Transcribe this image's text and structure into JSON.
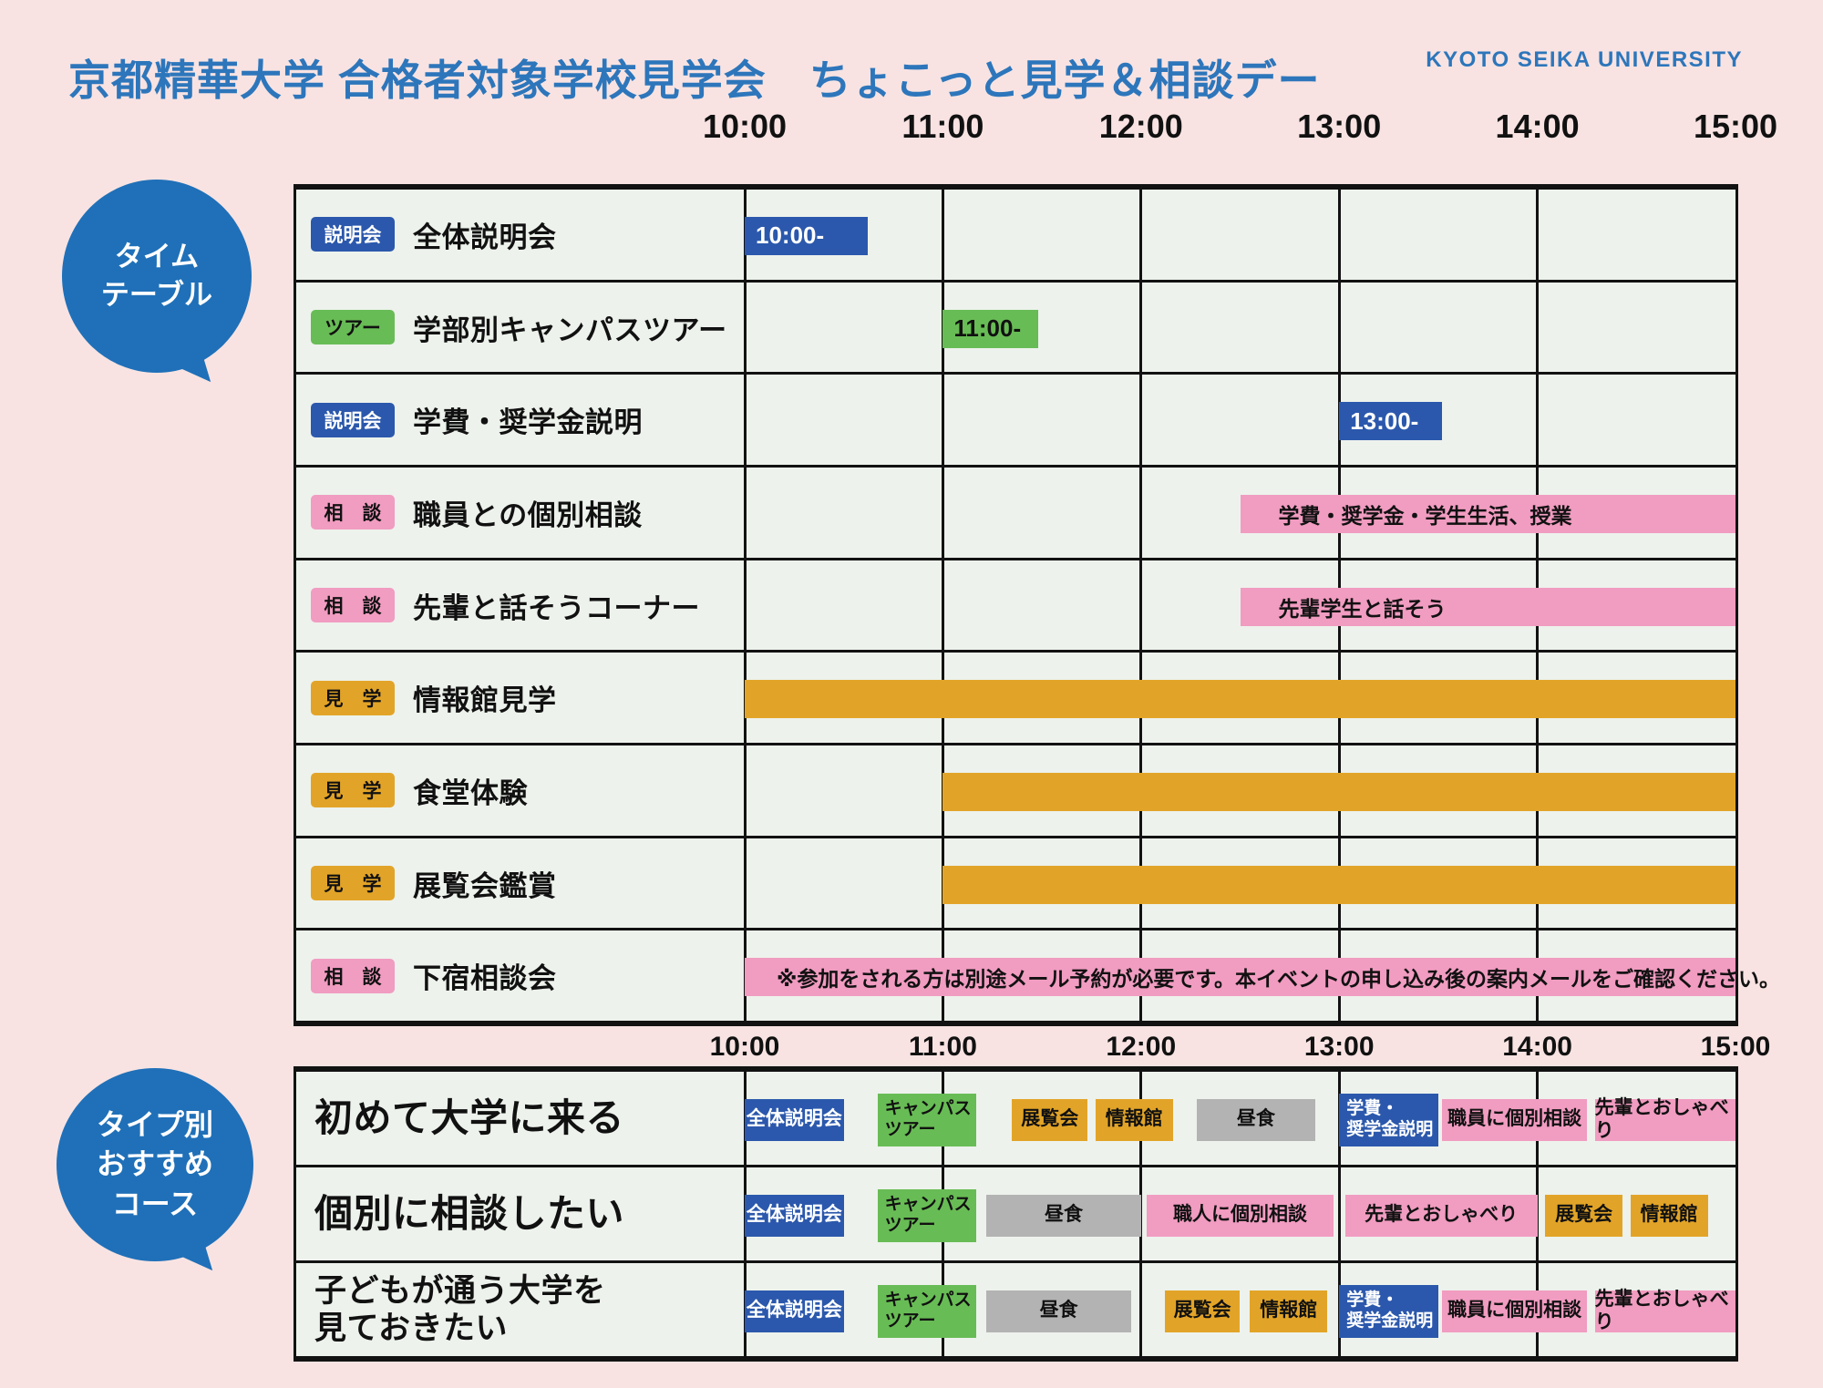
{
  "title": "京都精華大学 合格者対象学校見学会　ちょこっと見学＆相談デー",
  "brand": "KYOTO SEIKA UNIVERSITY",
  "bubbles": {
    "timetable": "タイム\nテーブル",
    "courses": "タイプ別\nおすすめ\nコース"
  },
  "palette": {
    "page_bg": "#f8e3e2",
    "cell_bg": "#edf2ec",
    "line": "#121212",
    "title_blue": "#2d76bb",
    "bubble_blue": "#1f70b8",
    "blue": "#2b58ac",
    "green": "#68bc55",
    "orange": "#e2a428",
    "pink": "#f19cc1",
    "gray": "#b3b3b3"
  },
  "time_axis": {
    "start": 10,
    "end": 15,
    "ticks": [
      "10:00",
      "11:00",
      "12:00",
      "13:00",
      "14:00",
      "15:00"
    ]
  },
  "chart_data": [
    {
      "type": "gantt",
      "name": "timetable",
      "rows": [
        {
          "badge": "説明会",
          "badge_color": "blue",
          "label": "全体説明会",
          "bars": [
            {
              "start": 10.0,
              "end": 10.62,
              "color": "blue",
              "text": "10:00-"
            }
          ]
        },
        {
          "badge": "ツアー",
          "badge_color": "green",
          "label": "学部別キャンパスツアー",
          "bars": [
            {
              "start": 11.0,
              "end": 11.48,
              "color": "green",
              "text": "11:00-"
            }
          ]
        },
        {
          "badge": "説明会",
          "badge_color": "blue",
          "label": "学費・奨学金説明",
          "bars": [
            {
              "start": 13.0,
              "end": 13.52,
              "color": "blue",
              "text": "13:00-"
            }
          ]
        },
        {
          "badge": "相　談",
          "badge_color": "pink",
          "label": "職員との個別相談",
          "bars": [
            {
              "start": 12.5,
              "end": 15.0,
              "color": "pink",
              "text": "学費・奨学金・学生生活、授業",
              "pad": 42
            }
          ]
        },
        {
          "badge": "相　談",
          "badge_color": "pink",
          "label": "先輩と話そうコーナー",
          "bars": [
            {
              "start": 12.5,
              "end": 15.0,
              "color": "pink",
              "text": "先輩学生と話そう",
              "pad": 42
            }
          ]
        },
        {
          "badge": "見　学",
          "badge_color": "orange",
          "label": "情報館見学",
          "bars": [
            {
              "start": 10.0,
              "end": 15.0,
              "color": "orange"
            }
          ]
        },
        {
          "badge": "見　学",
          "badge_color": "orange",
          "label": "食堂体験",
          "bars": [
            {
              "start": 11.0,
              "end": 15.0,
              "color": "orange"
            }
          ]
        },
        {
          "badge": "見　学",
          "badge_color": "orange",
          "label": "展覧会鑑賞",
          "bars": [
            {
              "start": 11.0,
              "end": 15.0,
              "color": "orange"
            }
          ]
        },
        {
          "badge": "相　談",
          "badge_color": "pink",
          "label": "下宿相談会",
          "bars": [
            {
              "start": 10.0,
              "end": 15.0,
              "color": "pink",
              "text": "※参加をされる方は別途メール予約が必要です。本イベントの申し込み後の案内メールをご確認ください。",
              "pad": 35
            }
          ]
        }
      ]
    },
    {
      "type": "gantt",
      "name": "recommended-courses",
      "rows": [
        {
          "label": "初めて大学に来る",
          "bars": [
            {
              "start": 10.0,
              "end": 10.5,
              "color": "blue",
              "text": "全体説明会"
            },
            {
              "start": 10.67,
              "end": 11.17,
              "color": "green",
              "text": "キャンパス\nツアー"
            },
            {
              "start": 11.35,
              "end": 11.73,
              "color": "orange",
              "text": "展覧会"
            },
            {
              "start": 11.77,
              "end": 12.16,
              "color": "orange",
              "text": "情報館"
            },
            {
              "start": 12.28,
              "end": 12.88,
              "color": "gray",
              "text": "昼食"
            },
            {
              "start": 13.0,
              "end": 13.5,
              "color": "blue",
              "text": "学費・\n奨学金説明"
            },
            {
              "start": 13.52,
              "end": 14.25,
              "color": "pink",
              "text": "職員に個別相談"
            },
            {
              "start": 14.29,
              "end": 15.0,
              "color": "pink",
              "text": "先輩とおしゃべり"
            }
          ]
        },
        {
          "label": "個別に相談したい",
          "bars": [
            {
              "start": 10.0,
              "end": 10.5,
              "color": "blue",
              "text": "全体説明会"
            },
            {
              "start": 10.67,
              "end": 11.17,
              "color": "green",
              "text": "キャンパス\nツアー"
            },
            {
              "start": 11.22,
              "end": 12.0,
              "color": "gray",
              "text": "昼食"
            },
            {
              "start": 12.03,
              "end": 12.97,
              "color": "pink",
              "text": "職人に個別相談"
            },
            {
              "start": 13.03,
              "end": 14.0,
              "color": "pink",
              "text": "先輩とおしゃべり"
            },
            {
              "start": 14.04,
              "end": 14.43,
              "color": "orange",
              "text": "展覧会"
            },
            {
              "start": 14.47,
              "end": 14.86,
              "color": "orange",
              "text": "情報館"
            }
          ]
        },
        {
          "label": "子どもが通う大学を\n見ておきたい",
          "bars": [
            {
              "start": 10.0,
              "end": 10.5,
              "color": "blue",
              "text": "全体説明会"
            },
            {
              "start": 10.67,
              "end": 11.17,
              "color": "green",
              "text": "キャンパス\nツアー"
            },
            {
              "start": 11.22,
              "end": 11.95,
              "color": "gray",
              "text": "昼食"
            },
            {
              "start": 12.12,
              "end": 12.5,
              "color": "orange",
              "text": "展覧会"
            },
            {
              "start": 12.55,
              "end": 12.94,
              "color": "orange",
              "text": "情報館"
            },
            {
              "start": 13.0,
              "end": 13.5,
              "color": "blue",
              "text": "学費・\n奨学金説明"
            },
            {
              "start": 13.52,
              "end": 14.25,
              "color": "pink",
              "text": "職員に個別相談"
            },
            {
              "start": 14.29,
              "end": 15.0,
              "color": "pink",
              "text": "先輩とおしゃべり"
            }
          ]
        }
      ]
    }
  ]
}
